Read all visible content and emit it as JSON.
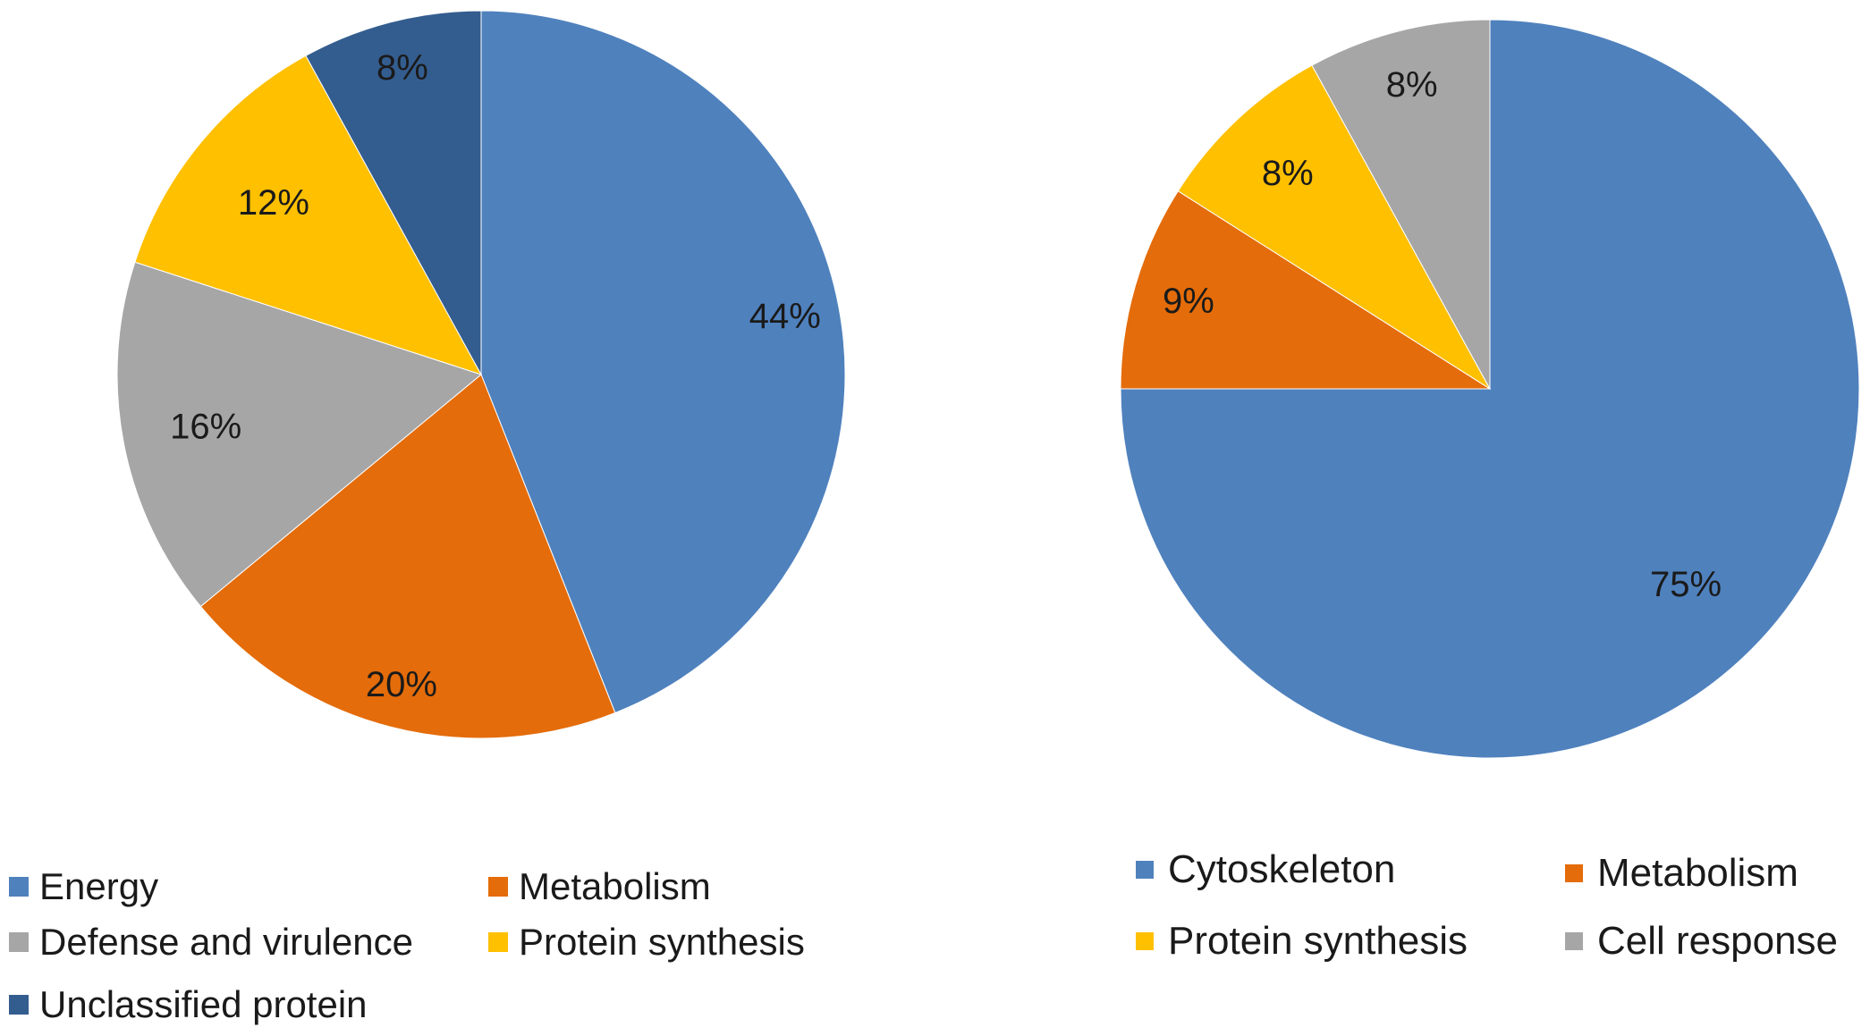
{
  "chart_data": [
    {
      "type": "pie",
      "slices": [
        {
          "label": "Energy",
          "value": 44,
          "display": "44%",
          "color": "#4f81bd"
        },
        {
          "label": "Metabolism",
          "value": 20,
          "display": "20%",
          "color": "#e46c0a"
        },
        {
          "label": "Defense and virulence",
          "value": 16,
          "display": "16%",
          "color": "#a6a6a6"
        },
        {
          "label": "Protein synthesis",
          "value": 12,
          "display": "12%",
          "color": "#ffc000"
        },
        {
          "label": "Unclassified protein",
          "value": 8,
          "display": "8%",
          "color": "#345d8f"
        }
      ],
      "legend": [
        {
          "label": "Energy",
          "color": "#4f81bd"
        },
        {
          "label": "Metabolism",
          "color": "#e46c0a"
        },
        {
          "label": "Defense and virulence",
          "color": "#a6a6a6"
        },
        {
          "label": "Protein synthesis",
          "color": "#ffc000"
        },
        {
          "label": "Unclassified protein",
          "color": "#345d8f"
        }
      ],
      "legend_position": "bottom"
    },
    {
      "type": "pie",
      "slices": [
        {
          "label": "Cytoskeleton",
          "value": 75,
          "display": "75%",
          "color": "#4f81bd"
        },
        {
          "label": "Metabolism",
          "value": 9,
          "display": "9%",
          "color": "#e46c0a"
        },
        {
          "label": "Protein synthesis",
          "value": 8,
          "display": "8%",
          "color": "#ffc000"
        },
        {
          "label": "Cell response",
          "value": 8,
          "display": "8%",
          "color": "#a6a6a6"
        }
      ],
      "legend": [
        {
          "label": "Cytoskeleton",
          "color": "#4f81bd"
        },
        {
          "label": "Metabolism",
          "color": "#e46c0a"
        },
        {
          "label": "Protein synthesis",
          "color": "#ffc000"
        },
        {
          "label": "Cell response",
          "color": "#a6a6a6"
        }
      ],
      "legend_position": "bottom"
    }
  ]
}
